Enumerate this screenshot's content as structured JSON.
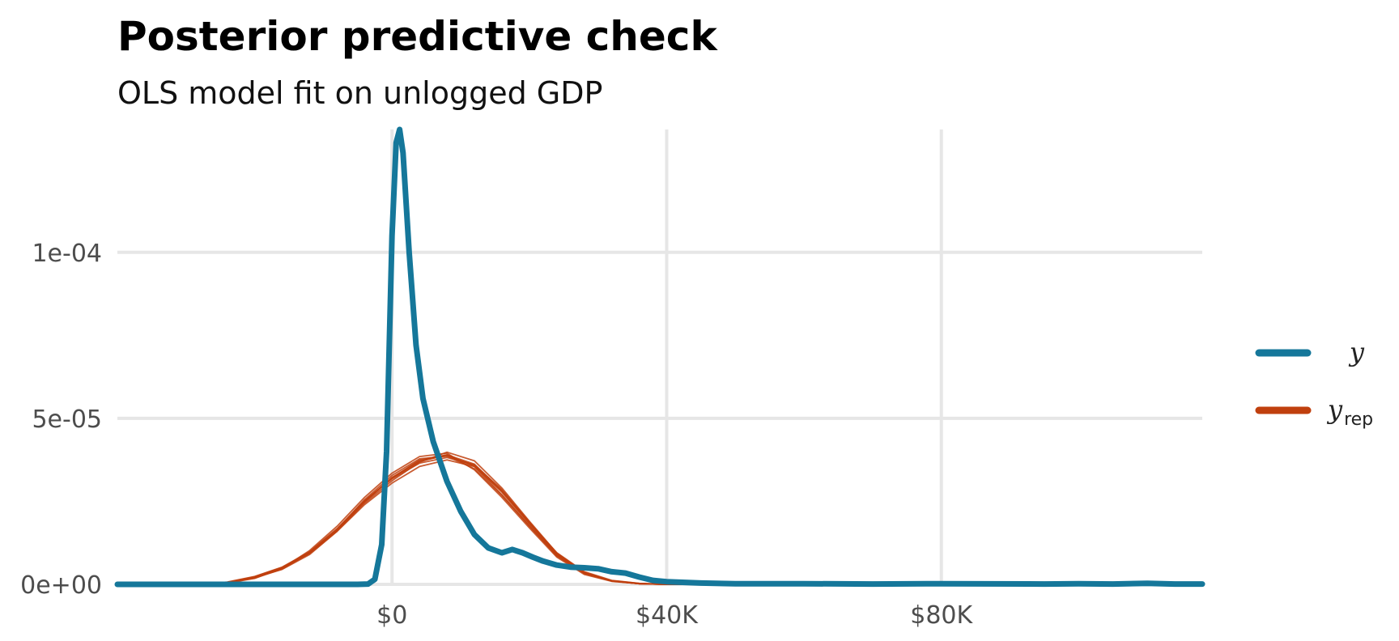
{
  "chart_data": {
    "type": "line",
    "title": "Posterior predictive check",
    "subtitle": "OLS model fit on unlogged GDP",
    "xlabel": "",
    "ylabel": "",
    "xlim": [
      -40000,
      118000
    ],
    "ylim": [
      0,
      0.000137
    ],
    "x_ticks": [
      {
        "value": 0,
        "label": "$0"
      },
      {
        "value": 40000,
        "label": "$40K"
      },
      {
        "value": 80000,
        "label": "$80K"
      }
    ],
    "y_ticks": [
      {
        "value": 0,
        "label": "0e+00"
      },
      {
        "value": 5e-05,
        "label": "5e-05"
      },
      {
        "value": 0.0001,
        "label": "1e-04"
      }
    ],
    "grid": true,
    "legend_position": "right",
    "legend": [
      {
        "key": "y",
        "label": "y",
        "sub": "",
        "color": "#15779a"
      },
      {
        "key": "yrep",
        "label": "y",
        "sub": "rep",
        "color": "#c0400e"
      }
    ],
    "series": [
      {
        "name": "y",
        "color": "#15779a",
        "x": [
          -40000,
          -5000,
          -3500,
          -2500,
          -1500,
          -800,
          0,
          600,
          1100,
          1600,
          2500,
          3500,
          4500,
          6000,
          8000,
          10000,
          12000,
          14000,
          16000,
          17500,
          19000,
          20500,
          22000,
          24000,
          26000,
          28000,
          30000,
          32000,
          34000,
          36000,
          38000,
          40000,
          45000,
          50000,
          60000,
          70000,
          80000,
          95000,
          100000,
          105000,
          110000,
          114000,
          118000
        ],
        "y": [
          0,
          0,
          1e-07,
          1.5e-06,
          1.2e-05,
          4e-05,
          0.000105,
          0.000133,
          0.000137,
          0.00013,
          0.0001,
          7.2e-05,
          5.6e-05,
          4.3e-05,
          3.1e-05,
          2.2e-05,
          1.5e-05,
          1.1e-05,
          9.5e-06,
          1.05e-05,
          9.5e-06,
          8.2e-06,
          7e-06,
          5.8e-06,
          5.2e-06,
          5e-06,
          4.7e-06,
          3.8e-06,
          3.4e-06,
          2.2e-06,
          1.2e-06,
          8e-07,
          4e-07,
          2e-07,
          2e-07,
          1e-07,
          2e-07,
          1e-07,
          2e-07,
          1e-07,
          3e-07,
          1e-07,
          1e-07
        ]
      },
      {
        "name": "yrep",
        "color": "#c0400e",
        "x": [
          -40000,
          -28000,
          -24000,
          -20000,
          -16000,
          -12000,
          -8000,
          -4000,
          0,
          4000,
          8000,
          12000,
          16000,
          20000,
          24000,
          28000,
          32000,
          36000,
          40000,
          118000
        ],
        "y": [
          0,
          0,
          6e-07,
          2.2e-06,
          5e-06,
          9.5e-06,
          1.65e-05,
          2.5e-05,
          3.2e-05,
          3.75e-05,
          3.9e-05,
          3.55e-05,
          2.7e-05,
          1.75e-05,
          8.5e-06,
          3.3e-06,
          1e-06,
          2e-07,
          0,
          0
        ]
      },
      {
        "name": "yrep",
        "color": "#c0400e",
        "x": [
          -40000,
          -28000,
          -24000,
          -20000,
          -16000,
          -12000,
          -8000,
          -4000,
          0,
          4000,
          8000,
          12000,
          16000,
          20000,
          24000,
          28000,
          32000,
          36000,
          40000,
          118000
        ],
        "y": [
          0,
          0,
          5e-07,
          2e-06,
          4.5e-06,
          9e-06,
          1.6e-05,
          2.4e-05,
          3.05e-05,
          3.55e-05,
          3.75e-05,
          3.55e-05,
          2.8e-05,
          1.85e-05,
          9.5e-06,
          3.8e-06,
          1.2e-06,
          3e-07,
          0,
          0
        ]
      },
      {
        "name": "yrep",
        "color": "#c0400e",
        "x": [
          -40000,
          -28000,
          -24000,
          -20000,
          -16000,
          -12000,
          -8000,
          -4000,
          0,
          4000,
          8000,
          12000,
          16000,
          20000,
          24000,
          28000,
          32000,
          36000,
          40000,
          118000
        ],
        "y": [
          0,
          0,
          4e-07,
          1.8e-06,
          4.8e-06,
          1.02e-05,
          1.75e-05,
          2.62e-05,
          3.35e-05,
          3.85e-05,
          3.95e-05,
          3.45e-05,
          2.62e-05,
          1.7e-05,
          8.2e-06,
          3e-06,
          9e-07,
          2e-07,
          0,
          0
        ]
      },
      {
        "name": "yrep",
        "color": "#c0400e",
        "x": [
          -40000,
          -28000,
          -24000,
          -20000,
          -16000,
          -12000,
          -8000,
          -4000,
          0,
          4000,
          8000,
          12000,
          16000,
          20000,
          24000,
          28000,
          32000,
          36000,
          40000,
          118000
        ],
        "y": [
          0,
          0,
          7e-07,
          2.4e-06,
          5.2e-06,
          9.8e-06,
          1.68e-05,
          2.52e-05,
          3.18e-05,
          3.65e-05,
          3.82e-05,
          3.6e-05,
          2.85e-05,
          1.88e-05,
          9.2e-06,
          3.6e-06,
          1.1e-06,
          3e-07,
          0,
          0
        ]
      },
      {
        "name": "yrep",
        "color": "#c0400e",
        "x": [
          -40000,
          -28000,
          -24000,
          -20000,
          -16000,
          -12000,
          -8000,
          -4000,
          0,
          4000,
          8000,
          12000,
          16000,
          20000,
          24000,
          28000,
          32000,
          36000,
          40000,
          118000
        ],
        "y": [
          0,
          0,
          5e-07,
          2.1e-06,
          4.9e-06,
          9.3e-06,
          1.6e-05,
          2.45e-05,
          3.12e-05,
          3.68e-05,
          3.98e-05,
          3.72e-05,
          2.9e-05,
          1.9e-05,
          9.4e-06,
          3.6e-06,
          1e-06,
          2e-07,
          0,
          0
        ]
      },
      {
        "name": "yrep",
        "color": "#c0400e",
        "x": [
          -40000,
          -28000,
          -24000,
          -20000,
          -16000,
          -12000,
          -8000,
          -4000,
          0,
          4000,
          8000,
          12000,
          16000,
          20000,
          24000,
          28000,
          32000,
          36000,
          40000,
          118000
        ],
        "y": [
          0,
          0,
          6e-07,
          2.3e-06,
          5.1e-06,
          9.7e-06,
          1.66e-05,
          2.55e-05,
          3.28e-05,
          3.78e-05,
          3.86e-05,
          3.48e-05,
          2.68e-05,
          1.76e-05,
          8.7e-06,
          3.3e-06,
          1e-06,
          2e-07,
          0,
          0
        ]
      },
      {
        "name": "yrep",
        "color": "#c0400e",
        "x": [
          -40000,
          -28000,
          -24000,
          -20000,
          -16000,
          -12000,
          -8000,
          -4000,
          0,
          4000,
          8000,
          12000,
          16000,
          20000,
          24000,
          28000,
          32000,
          36000,
          40000,
          118000
        ],
        "y": [
          0,
          0,
          5e-07,
          1.9e-06,
          4.6e-06,
          9.4e-06,
          1.63e-05,
          2.48e-05,
          3.22e-05,
          3.72e-05,
          3.88e-05,
          3.58e-05,
          2.78e-05,
          1.81e-05,
          8.9e-06,
          3.4e-06,
          1e-06,
          2e-07,
          0,
          0
        ]
      },
      {
        "name": "yrep",
        "color": "#c0400e",
        "x": [
          -40000,
          -28000,
          -24000,
          -20000,
          -16000,
          -12000,
          -8000,
          -4000,
          0,
          4000,
          8000,
          12000,
          16000,
          20000,
          24000,
          28000,
          32000,
          36000,
          40000,
          118000
        ],
        "y": [
          0,
          0,
          6e-07,
          2.2e-06,
          5e-06,
          9.6e-06,
          1.64e-05,
          2.5e-05,
          3.2e-05,
          3.7e-05,
          3.9e-05,
          3.62e-05,
          2.82e-05,
          1.84e-05,
          9e-06,
          3.5e-06,
          1e-06,
          2e-07,
          0,
          0
        ]
      }
    ]
  }
}
